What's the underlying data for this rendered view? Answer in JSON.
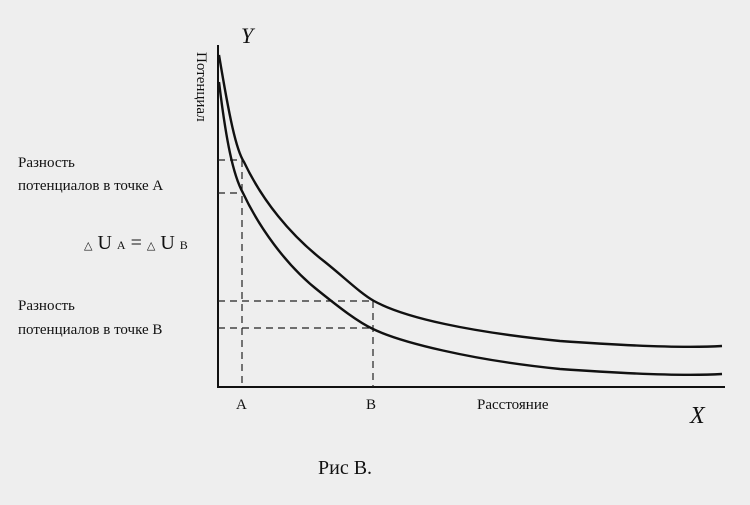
{
  "diagram": {
    "axis_y_letter": "Y",
    "axis_x_letter": "X",
    "y_axis_label": "Потенциал",
    "x_axis_label": "Расстояние",
    "point_a_label": "A",
    "point_b_label": "B",
    "label_a_line1": "Разность",
    "label_a_line2": "потенциалов в точке А",
    "label_b_line1": "Разность",
    "label_b_line2": "потенциалов в точке В",
    "equation": {
      "delta": "△",
      "u": "U",
      "sub_a": "A",
      "equals": " = ",
      "sub_b": "B"
    },
    "caption": "Рис B."
  }
}
